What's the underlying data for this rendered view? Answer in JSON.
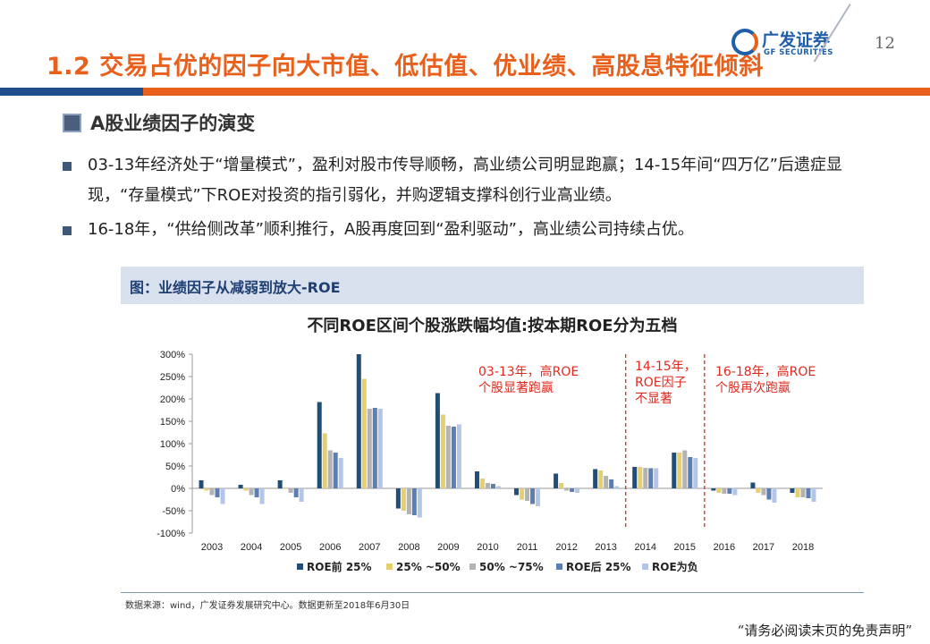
{
  "header": {
    "title": "1.2 交易占优的因子向大市值、低估值、优业绩、高股息特征倾斜",
    "logo_cn": "广发证券",
    "logo_en": "GF SECURITIES",
    "page_number": "12"
  },
  "section": {
    "title": "A股业绩因子的演变"
  },
  "bullets": [
    "03-13年经济处于“增量模式”，盈利对股市传导顺畅，高业绩公司明显跑赢；14-15年间“四万亿”后遗症显现，“存量模式”下ROE对投资的指引弱化，并购逻辑支撑科创行业高业绩。",
    "16-18年，“供给侧改革”顺利推行，A股再度回到“盈利驱动”，高业绩公司持续占优。"
  ],
  "figure": {
    "label": "图：业绩因子从减弱到放大-ROE"
  },
  "chart_data": {
    "type": "bar",
    "title": "不同ROE区间个股涨跌幅均值:按本期ROE分为五档",
    "categories": [
      "2003",
      "2004",
      "2005",
      "2006",
      "2007",
      "2008",
      "2009",
      "2010",
      "2011",
      "2012",
      "2013",
      "2014",
      "2015",
      "2016",
      "2017",
      "2018"
    ],
    "ylim": [
      -100,
      300
    ],
    "yticks": [
      -100,
      -50,
      0,
      50,
      100,
      150,
      200,
      250,
      300
    ],
    "ytick_labels": [
      "-100%",
      "-50%",
      "0%",
      "50%",
      "100%",
      "150%",
      "200%",
      "250%",
      "300%"
    ],
    "grid": false,
    "legend_position": "bottom",
    "series": [
      {
        "name": "ROE前 25%",
        "color": "#1f4e79",
        "values": [
          18,
          8,
          18,
          193,
          300,
          -45,
          213,
          38,
          -15,
          33,
          43,
          48,
          80,
          -5,
          13,
          -10
        ]
      },
      {
        "name": "25% ~50%",
        "color": "#e6cf6e",
        "values": [
          -5,
          -5,
          0,
          123,
          245,
          -50,
          165,
          22,
          -25,
          12,
          40,
          48,
          80,
          -10,
          -10,
          -20
        ]
      },
      {
        "name": "50% ~75%",
        "color": "#b3b3b3",
        "values": [
          -15,
          -15,
          -10,
          85,
          178,
          -58,
          140,
          12,
          -28,
          -5,
          28,
          46,
          85,
          -12,
          -15,
          -20
        ]
      },
      {
        "name": "ROE后 25%",
        "color": "#5b7fb4",
        "values": [
          -20,
          -20,
          -20,
          80,
          180,
          -60,
          138,
          10,
          -35,
          -8,
          20,
          45,
          70,
          -12,
          -25,
          -22
        ]
      },
      {
        "name": "ROE为负",
        "color": "#b4c6e7",
        "values": [
          -35,
          -35,
          -30,
          68,
          178,
          -65,
          143,
          5,
          -40,
          -10,
          5,
          45,
          68,
          -15,
          -32,
          -30
        ]
      }
    ],
    "annotations": [
      {
        "text": [
          "03-13年，高ROE",
          "个股显著跑赢"
        ]
      },
      {
        "text": [
          "14-15年，",
          "ROE因子",
          "不显著"
        ]
      },
      {
        "text": [
          "16-18年，高ROE",
          "个股再次跑赢"
        ]
      }
    ],
    "annotation_color": "#e0291e"
  },
  "source": "数据来源：wind，广发证券发展研究中心。数据更新至2018年6月30日",
  "disclaimer": "“请务必阅读末页的免责声明”"
}
